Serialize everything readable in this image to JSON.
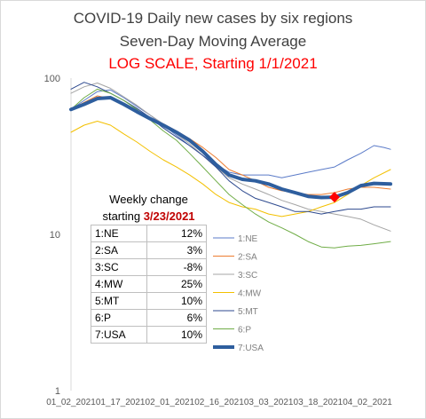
{
  "titles": {
    "line1": "COVID-19 Daily new cases by six regions",
    "line2": "Seven-Day Moving Average",
    "line3": "LOG SCALE, Starting 1/1/2021"
  },
  "table": {
    "header1": "Weekly change",
    "header2_prefix": "starting ",
    "header2_date": "3/23/2021",
    "rows": [
      {
        "region": "1:NE",
        "change": "12%"
      },
      {
        "region": "2:SA",
        "change": "3%"
      },
      {
        "region": "3:SC",
        "change": "-8%"
      },
      {
        "region": "4:MW",
        "change": "25%"
      },
      {
        "region": "5:MT",
        "change": "10%"
      },
      {
        "region": "6:P",
        "change": "6%"
      },
      {
        "region": "7:USA",
        "change": "10%"
      }
    ]
  },
  "chart_data": {
    "type": "line",
    "yscale": "log",
    "ylim": [
      1,
      100
    ],
    "yticks": [
      "100",
      "10",
      "1"
    ],
    "xlim": [
      "2021-01-02",
      "2021-04-09"
    ],
    "xticks": [
      "01_02_2021",
      "01_17_2021",
      "02_01_2021",
      "02_16_2021",
      "03_03_2021",
      "03_18_2021",
      "04_02_2021"
    ],
    "marker": {
      "series": "7:USA",
      "date": "2021-03-23",
      "value": 17.3,
      "color": "#ff0000"
    },
    "legend_position": "right",
    "series": [
      {
        "name": "1:NE",
        "color": "#5b7bc8",
        "width": 1,
        "points": [
          [
            "2021-01-02",
            63
          ],
          [
            "2021-01-06",
            72
          ],
          [
            "2021-01-10",
            82
          ],
          [
            "2021-01-14",
            84
          ],
          [
            "2021-01-18",
            75
          ],
          [
            "2021-01-22",
            66
          ],
          [
            "2021-01-26",
            58
          ],
          [
            "2021-01-30",
            50
          ],
          [
            "2021-02-03",
            43
          ],
          [
            "2021-02-07",
            37
          ],
          [
            "2021-02-11",
            32
          ],
          [
            "2021-02-15",
            28
          ],
          [
            "2021-02-19",
            25
          ],
          [
            "2021-02-23",
            24
          ],
          [
            "2021-02-27",
            24
          ],
          [
            "2021-03-03",
            24
          ],
          [
            "2021-03-07",
            23
          ],
          [
            "2021-03-11",
            24
          ],
          [
            "2021-03-15",
            25
          ],
          [
            "2021-03-19",
            26
          ],
          [
            "2021-03-23",
            27
          ],
          [
            "2021-03-27",
            30
          ],
          [
            "2021-03-31",
            33
          ],
          [
            "2021-04-04",
            37
          ],
          [
            "2021-04-07",
            36
          ],
          [
            "2021-04-09",
            35
          ]
        ]
      },
      {
        "name": "2:SA",
        "color": "#ed7d31",
        "width": 1,
        "points": [
          [
            "2021-01-02",
            63
          ],
          [
            "2021-01-06",
            70
          ],
          [
            "2021-01-10",
            77
          ],
          [
            "2021-01-14",
            74
          ],
          [
            "2021-01-18",
            68
          ],
          [
            "2021-01-22",
            62
          ],
          [
            "2021-01-26",
            56
          ],
          [
            "2021-01-30",
            51
          ],
          [
            "2021-02-03",
            46
          ],
          [
            "2021-02-07",
            41
          ],
          [
            "2021-02-11",
            36
          ],
          [
            "2021-02-15",
            31
          ],
          [
            "2021-02-19",
            26
          ],
          [
            "2021-02-23",
            24
          ],
          [
            "2021-02-27",
            22
          ],
          [
            "2021-03-03",
            20
          ],
          [
            "2021-03-07",
            19
          ],
          [
            "2021-03-11",
            18.5
          ],
          [
            "2021-03-15",
            18
          ],
          [
            "2021-03-19",
            18
          ],
          [
            "2021-03-23",
            18.5
          ],
          [
            "2021-03-27",
            19.5
          ],
          [
            "2021-03-31",
            20
          ],
          [
            "2021-04-04",
            20
          ],
          [
            "2021-04-09",
            19.5
          ]
        ]
      },
      {
        "name": "3:SC",
        "color": "#a5a5a5",
        "width": 1,
        "points": [
          [
            "2021-01-02",
            80
          ],
          [
            "2021-01-06",
            88
          ],
          [
            "2021-01-10",
            93
          ],
          [
            "2021-01-14",
            86
          ],
          [
            "2021-01-18",
            76
          ],
          [
            "2021-01-22",
            67
          ],
          [
            "2021-01-26",
            58
          ],
          [
            "2021-01-30",
            51
          ],
          [
            "2021-02-03",
            44
          ],
          [
            "2021-02-07",
            38
          ],
          [
            "2021-02-11",
            32
          ],
          [
            "2021-02-15",
            27
          ],
          [
            "2021-02-19",
            23
          ],
          [
            "2021-02-23",
            21
          ],
          [
            "2021-02-27",
            19.5
          ],
          [
            "2021-03-03",
            18
          ],
          [
            "2021-03-07",
            16.5
          ],
          [
            "2021-03-11",
            15.5
          ],
          [
            "2021-03-15",
            14.5
          ],
          [
            "2021-03-19",
            14
          ],
          [
            "2021-03-23",
            13.5
          ],
          [
            "2021-03-27",
            13
          ],
          [
            "2021-03-31",
            12.5
          ],
          [
            "2021-04-04",
            11.5
          ],
          [
            "2021-04-09",
            10.5
          ]
        ]
      },
      {
        "name": "4:MW",
        "color": "#f3c000",
        "width": 1,
        "points": [
          [
            "2021-01-02",
            45
          ],
          [
            "2021-01-06",
            50
          ],
          [
            "2021-01-10",
            53
          ],
          [
            "2021-01-14",
            50
          ],
          [
            "2021-01-18",
            44
          ],
          [
            "2021-01-22",
            39
          ],
          [
            "2021-01-26",
            34
          ],
          [
            "2021-01-30",
            30
          ],
          [
            "2021-02-03",
            27
          ],
          [
            "2021-02-07",
            24
          ],
          [
            "2021-02-11",
            21
          ],
          [
            "2021-02-15",
            18
          ],
          [
            "2021-02-19",
            16
          ],
          [
            "2021-02-23",
            15
          ],
          [
            "2021-02-27",
            14.5
          ],
          [
            "2021-03-03",
            13.5
          ],
          [
            "2021-03-07",
            13
          ],
          [
            "2021-03-11",
            13.5
          ],
          [
            "2021-03-15",
            14
          ],
          [
            "2021-03-19",
            15
          ],
          [
            "2021-03-23",
            16
          ],
          [
            "2021-03-27",
            18
          ],
          [
            "2021-03-31",
            20.5
          ],
          [
            "2021-04-04",
            23
          ],
          [
            "2021-04-09",
            26
          ]
        ]
      },
      {
        "name": "5:MT",
        "color": "#2e4a8f",
        "width": 1,
        "points": [
          [
            "2021-01-02",
            85
          ],
          [
            "2021-01-06",
            94
          ],
          [
            "2021-01-10",
            88
          ],
          [
            "2021-01-14",
            80
          ],
          [
            "2021-01-18",
            72
          ],
          [
            "2021-01-22",
            64
          ],
          [
            "2021-01-26",
            56
          ],
          [
            "2021-01-30",
            48
          ],
          [
            "2021-02-03",
            42
          ],
          [
            "2021-02-07",
            37
          ],
          [
            "2021-02-11",
            32
          ],
          [
            "2021-02-15",
            27
          ],
          [
            "2021-02-19",
            22
          ],
          [
            "2021-02-23",
            19
          ],
          [
            "2021-02-27",
            17
          ],
          [
            "2021-03-03",
            16
          ],
          [
            "2021-03-07",
            15
          ],
          [
            "2021-03-11",
            14
          ],
          [
            "2021-03-15",
            14
          ],
          [
            "2021-03-19",
            13.5
          ],
          [
            "2021-03-23",
            14
          ],
          [
            "2021-03-27",
            14.5
          ],
          [
            "2021-03-31",
            14.5
          ],
          [
            "2021-04-04",
            15
          ],
          [
            "2021-04-09",
            15
          ]
        ]
      },
      {
        "name": "6:P",
        "color": "#70ad47",
        "width": 1,
        "points": [
          [
            "2021-01-02",
            63
          ],
          [
            "2021-01-06",
            75
          ],
          [
            "2021-01-10",
            85
          ],
          [
            "2021-01-14",
            80
          ],
          [
            "2021-01-18",
            72
          ],
          [
            "2021-01-22",
            63
          ],
          [
            "2021-01-26",
            54
          ],
          [
            "2021-01-30",
            46
          ],
          [
            "2021-02-03",
            40
          ],
          [
            "2021-02-07",
            33
          ],
          [
            "2021-02-11",
            27
          ],
          [
            "2021-02-15",
            22
          ],
          [
            "2021-02-19",
            18
          ],
          [
            "2021-02-23",
            15.5
          ],
          [
            "2021-02-27",
            13.5
          ],
          [
            "2021-03-03",
            12
          ],
          [
            "2021-03-07",
            11
          ],
          [
            "2021-03-11",
            10
          ],
          [
            "2021-03-15",
            9
          ],
          [
            "2021-03-19",
            8.3
          ],
          [
            "2021-03-23",
            8.2
          ],
          [
            "2021-03-27",
            8.4
          ],
          [
            "2021-03-31",
            8.5
          ],
          [
            "2021-04-04",
            8.7
          ],
          [
            "2021-04-09",
            9
          ]
        ]
      },
      {
        "name": "7:USA",
        "color": "#2e5e9e",
        "width": 4,
        "points": [
          [
            "2021-01-02",
            63
          ],
          [
            "2021-01-06",
            68
          ],
          [
            "2021-01-10",
            74
          ],
          [
            "2021-01-14",
            75
          ],
          [
            "2021-01-18",
            68
          ],
          [
            "2021-01-22",
            61
          ],
          [
            "2021-01-26",
            55
          ],
          [
            "2021-01-30",
            50
          ],
          [
            "2021-02-03",
            45
          ],
          [
            "2021-02-07",
            40
          ],
          [
            "2021-02-11",
            34
          ],
          [
            "2021-02-15",
            28
          ],
          [
            "2021-02-19",
            24
          ],
          [
            "2021-02-23",
            22.5
          ],
          [
            "2021-02-27",
            22
          ],
          [
            "2021-03-03",
            21
          ],
          [
            "2021-03-07",
            19.5
          ],
          [
            "2021-03-11",
            18.5
          ],
          [
            "2021-03-15",
            17.5
          ],
          [
            "2021-03-19",
            17.2
          ],
          [
            "2021-03-23",
            17.3
          ],
          [
            "2021-03-27",
            18.5
          ],
          [
            "2021-03-31",
            20.5
          ],
          [
            "2021-04-04",
            21.2
          ],
          [
            "2021-04-09",
            21
          ]
        ]
      }
    ]
  }
}
